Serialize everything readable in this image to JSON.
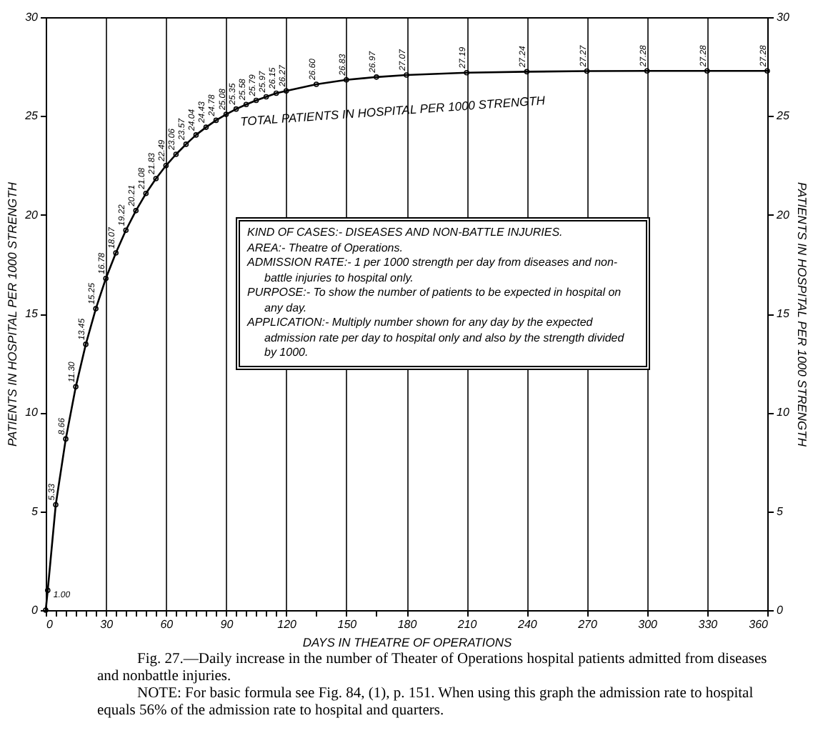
{
  "chart_data": {
    "type": "line",
    "xlabel": "DAYS IN THEATRE OF OPERATIONS",
    "ylabel": "PATIENTS IN HOSPITAL PER 1000 STRENGTH",
    "y2label": "PATIENTS IN HOSPITAL PER 1000 STRENGTH",
    "x": [
      0,
      1,
      5,
      10,
      15,
      20,
      25,
      30,
      35,
      40,
      45,
      50,
      55,
      60,
      65,
      70,
      75,
      80,
      85,
      90,
      95,
      100,
      105,
      110,
      115,
      120,
      135,
      150,
      165,
      180,
      210,
      240,
      270,
      300,
      330,
      360
    ],
    "series": [
      {
        "name": "TOTAL PATIENTS IN HOSPITAL PER 1000 STRENGTH",
        "color": "#000000",
        "values": [
          0,
          1.0,
          5.33,
          8.66,
          11.3,
          13.45,
          15.25,
          16.78,
          18.07,
          19.22,
          20.21,
          21.08,
          21.83,
          22.49,
          23.06,
          23.57,
          24.04,
          24.43,
          24.78,
          25.08,
          25.35,
          25.58,
          25.79,
          25.97,
          26.15,
          26.27,
          26.6,
          26.83,
          26.97,
          27.07,
          27.19,
          27.24,
          27.27,
          27.28,
          27.28,
          27.28
        ],
        "value_labels": [
          null,
          "1.00",
          "5.33",
          "8.66",
          "11.30",
          "13.45",
          "15.25",
          "16.78",
          "18.07",
          "19.22",
          "20.21",
          "21.08",
          "21.83",
          "22.49",
          "23.06",
          "23.57",
          "24.04",
          "24.43",
          "24.78",
          "25.08",
          "25.35",
          "25.58",
          "25.79",
          "25.97",
          "26.15",
          "26.27",
          "26.60",
          "26.83",
          "26.97",
          "27.07",
          "27.19",
          "27.24",
          "27.27",
          "27.28",
          "27.28",
          "27.28"
        ]
      }
    ],
    "xlim": [
      0,
      360
    ],
    "xticks": [
      0,
      {
        "value": 5,
        "label": null
      },
      {
        "value": 10,
        "label": null
      },
      {
        "value": 15,
        "label": null
      },
      {
        "value": 20,
        "label": null
      },
      {
        "value": 25,
        "label": null
      },
      30,
      {
        "value": 35,
        "label": null
      },
      {
        "value": 40,
        "label": null
      },
      {
        "value": 45,
        "label": null
      },
      {
        "value": 50,
        "label": null
      },
      {
        "value": 55,
        "label": null
      },
      60,
      {
        "value": 65,
        "label": null
      },
      {
        "value": 70,
        "label": null
      },
      {
        "value": 75,
        "label": null
      },
      {
        "value": 80,
        "label": null
      },
      {
        "value": 85,
        "label": null
      },
      90,
      {
        "value": 95,
        "label": null
      },
      {
        "value": 100,
        "label": null
      },
      {
        "value": 105,
        "label": null
      },
      {
        "value": 110,
        "label": null
      },
      {
        "value": 115,
        "label": null
      },
      120,
      {
        "value": 135,
        "label": null
      },
      150,
      {
        "value": 165,
        "label": null
      },
      180,
      210,
      240,
      270,
      300,
      330,
      360
    ],
    "ylim": [
      0,
      30
    ],
    "yticks": [
      0,
      5,
      10,
      15,
      20,
      25,
      30
    ],
    "y2lim": [
      0,
      30
    ],
    "y2ticks": [
      0,
      5,
      10,
      15,
      20,
      25,
      30
    ],
    "grid": "x",
    "legend": false,
    "marker": "circle",
    "line_style": "solid",
    "annotations": [
      "KIND OF CASES:- DISEASES AND NON-BATTLE INJURIES.",
      "AREA:- Theatre of Operations.",
      "ADMISSION RATE:- 1 per 1000 strength per day from diseases and non-battle injuries to hospital only.",
      "PURPOSE:- To show the number of patients to be expected in hospital on any day.",
      "APPLICATION:- Multiply number shown for any day by the expected admission rate per day to hospital only and also by the strength divided by 1000.",
      "Fig. 27.—Daily increase in the number of Theater of Operations hospital patients admitted from diseases and nonbattle injuries.",
      "NOTE: For basic formula see Fig. 84, (1), p. 151. When using this graph the admission rate to hospital equals 56% of the admission rate to hospital and quarters."
    ]
  }
}
